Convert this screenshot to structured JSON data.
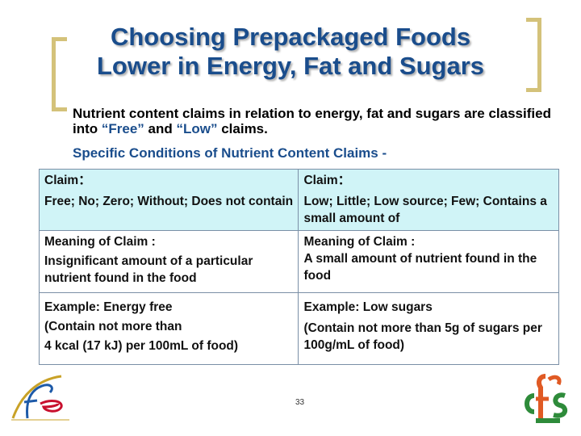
{
  "slide": {
    "title_line1": "Choosing Prepackaged Foods",
    "title_line2": "Lower in Energy, Fat and Sugars",
    "intro_part1": "Nutrient content claims in relation to energy, fat and sugars are classified into ",
    "intro_free": "“Free”",
    "intro_and": " and ",
    "intro_low": "“Low”",
    "intro_end": " claims.",
    "subtitle": "Specific Conditions of Nutrient Content Claims -",
    "page_number": "33"
  },
  "table": {
    "free": {
      "claim_label": "Claim：",
      "claim_value": "Free; No; Zero; Without; Does not contain",
      "meaning_label": "Meaning of Claim :",
      "meaning_value": "Insignificant amount of a particular nutrient found in the food",
      "example_label": "Example: Energy free",
      "example_line1": "(Contain not more than",
      "example_line2": "4 kcal (17 kJ) per 100mL of food)"
    },
    "low": {
      "claim_label": "Claim：",
      "claim_value": "Low; Little; Low source; Few; Contains a small amount of",
      "meaning_label": "Meaning of Claim :",
      "meaning_value": "A small amount of nutrient found in the food",
      "example_label": "Example: Low sugars",
      "example_value": "(Contain not more than 5g of sugars per 100g/mL of food)"
    }
  },
  "logos": {
    "left": "fehd-logo",
    "right": "cfs-logo"
  },
  "colors": {
    "title": "#1a4d8c",
    "bracket": "#d4c27a",
    "header_row": "#d0f4f7",
    "table_border": "#7a8fa6"
  }
}
